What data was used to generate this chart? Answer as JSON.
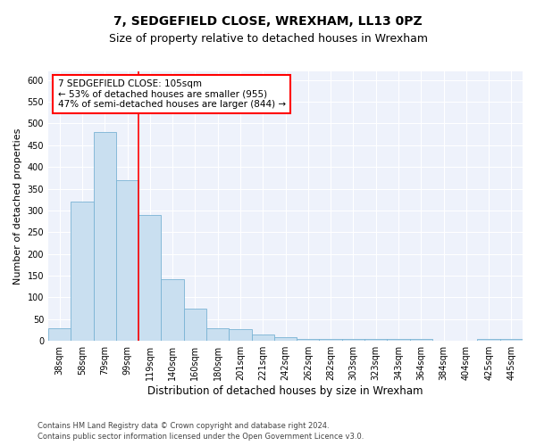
{
  "title1": "7, SEDGEFIELD CLOSE, WREXHAM, LL13 0PZ",
  "title2": "Size of property relative to detached houses in Wrexham",
  "xlabel": "Distribution of detached houses by size in Wrexham",
  "ylabel": "Number of detached properties",
  "footnote1": "Contains HM Land Registry data © Crown copyright and database right 2024.",
  "footnote2": "Contains public sector information licensed under the Open Government Licence v3.0.",
  "categories": [
    "38sqm",
    "58sqm",
    "79sqm",
    "99sqm",
    "119sqm",
    "140sqm",
    "160sqm",
    "180sqm",
    "201sqm",
    "221sqm",
    "242sqm",
    "262sqm",
    "282sqm",
    "303sqm",
    "323sqm",
    "343sqm",
    "364sqm",
    "384sqm",
    "404sqm",
    "425sqm",
    "445sqm"
  ],
  "values": [
    30,
    320,
    480,
    370,
    290,
    143,
    75,
    30,
    27,
    15,
    8,
    5,
    5,
    5,
    5,
    5,
    5,
    0,
    0,
    5,
    5
  ],
  "bar_color": "#c9dff0",
  "bar_edge_color": "#7ab3d4",
  "red_line_x": 3.5,
  "annotation_line1": "7 SEDGEFIELD CLOSE: 105sqm",
  "annotation_line2": "← 53% of detached houses are smaller (955)",
  "annotation_line3": "47% of semi-detached houses are larger (844) →",
  "annotation_box_color": "white",
  "annotation_box_edge_color": "red",
  "ylim": [
    0,
    620
  ],
  "yticks": [
    0,
    50,
    100,
    150,
    200,
    250,
    300,
    350,
    400,
    450,
    500,
    550,
    600
  ],
  "background_color": "#eef2fb",
  "grid_color": "white",
  "title1_fontsize": 10,
  "title2_fontsize": 9,
  "xlabel_fontsize": 8.5,
  "ylabel_fontsize": 8,
  "tick_fontsize": 7,
  "annotation_fontsize": 7.5,
  "footnote_fontsize": 6
}
